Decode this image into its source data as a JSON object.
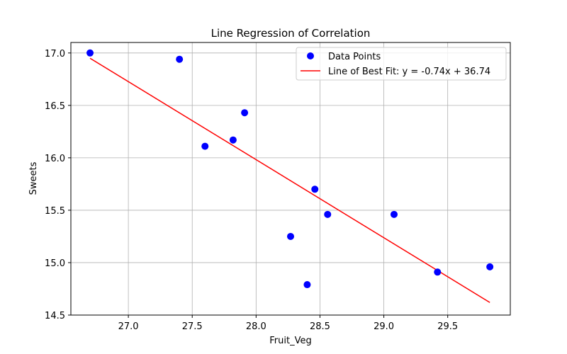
{
  "chart_data": {
    "type": "scatter",
    "title": "Line Regression of Correlation",
    "xlabel": "Fruit_Veg",
    "ylabel": "Sweets",
    "xlim": [
      26.55,
      29.99
    ],
    "ylim": [
      14.5,
      17.1
    ],
    "xticks": [
      27.0,
      27.5,
      28.0,
      28.5,
      29.0,
      29.5
    ],
    "xtick_labels": [
      "27.0",
      "27.5",
      "28.0",
      "28.5",
      "29.0",
      "29.5"
    ],
    "yticks": [
      14.5,
      15.0,
      15.5,
      16.0,
      16.5,
      17.0
    ],
    "ytick_labels": [
      "14.5",
      "15.0",
      "15.5",
      "16.0",
      "16.5",
      "17.0"
    ],
    "grid": true,
    "legend_position": "top-right",
    "series": [
      {
        "name": "Data Points",
        "kind": "scatter",
        "color": "#0000ff",
        "x": [
          26.7,
          27.4,
          27.6,
          27.82,
          27.91,
          28.27,
          28.4,
          28.46,
          28.56,
          29.08,
          29.42,
          29.83
        ],
        "y": [
          17.0,
          16.94,
          16.11,
          16.17,
          16.43,
          15.25,
          14.79,
          15.7,
          15.46,
          15.46,
          14.91,
          14.96
        ]
      },
      {
        "name": "Line of Best Fit: y = -0.74x + 36.74",
        "kind": "line",
        "color": "#ff0000",
        "x": [
          26.7,
          29.83
        ],
        "y": [
          16.95,
          14.62
        ]
      }
    ]
  }
}
